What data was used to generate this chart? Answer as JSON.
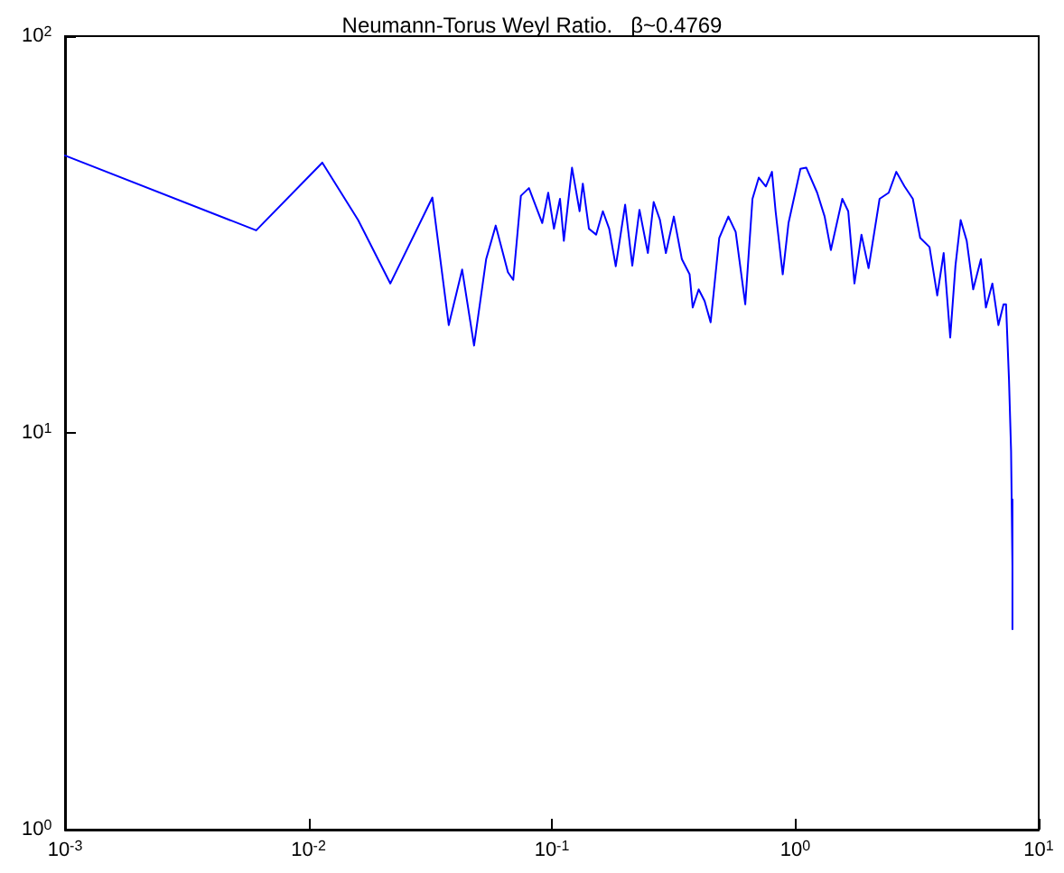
{
  "chart_data": {
    "type": "line",
    "title": "Neumann-Torus Weyl Ratio.   β~0.4769",
    "log": "xy",
    "grid": false,
    "marker": "none",
    "line_style": "solid",
    "xlim": [
      0.001,
      10
    ],
    "ylim": [
      1,
      100
    ],
    "xticks": [
      {
        "value": 0.001,
        "label": "10$^{-3}$"
      },
      {
        "value": 0.01,
        "label": "10$^{-2}$"
      },
      {
        "value": 0.1,
        "label": "10$^{-1}$"
      },
      {
        "value": 1,
        "label": "10$^{0}$"
      },
      {
        "value": 10,
        "label": "10$^{1}$"
      }
    ],
    "yticks": [
      {
        "value": 1,
        "label": "10$^{0}$"
      },
      {
        "value": 10,
        "label": "10$^{1}$"
      },
      {
        "value": 100,
        "label": "10$^{2}$"
      }
    ],
    "series": [
      {
        "color": "#0000ff",
        "x": [
          0.001,
          0.0061,
          0.0114,
          0.016,
          0.0217,
          0.0323,
          0.0377,
          0.0428,
          0.0479,
          0.0537,
          0.0588,
          0.066,
          0.0694,
          0.0746,
          0.0805,
          0.0913,
          0.0966,
          0.102,
          0.108,
          0.112,
          0.121,
          0.13,
          0.134,
          0.142,
          0.152,
          0.162,
          0.172,
          0.183,
          0.2,
          0.214,
          0.229,
          0.248,
          0.262,
          0.278,
          0.294,
          0.317,
          0.342,
          0.368,
          0.379,
          0.401,
          0.424,
          0.449,
          0.487,
          0.531,
          0.569,
          0.623,
          0.667,
          0.708,
          0.757,
          0.802,
          0.83,
          0.888,
          0.938,
          1.05,
          1.11,
          1.23,
          1.32,
          1.4,
          1.56,
          1.65,
          1.75,
          1.87,
          2.0,
          2.22,
          2.42,
          2.6,
          2.81,
          3.04,
          3.26,
          3.56,
          3.83,
          4.07,
          4.33,
          4.55,
          4.78,
          5.06,
          5.38,
          5.79,
          6.07,
          6.45,
          6.83,
          7.17,
          7.34,
          7.55,
          7.7,
          7.8,
          7.8,
          7.8
        ],
        "values": [
          50,
          32.4,
          48,
          34.4,
          23.8,
          39.2,
          18.7,
          25.8,
          16.6,
          27.4,
          33.3,
          25.4,
          24.3,
          39.6,
          41.4,
          33.8,
          40.3,
          32.7,
          38.9,
          30.5,
          46.6,
          36.2,
          42.5,
          32.7,
          31.6,
          36.2,
          32.7,
          26.3,
          37.6,
          26.4,
          36.5,
          28.4,
          38.2,
          34.4,
          28.4,
          35.1,
          27.4,
          25.1,
          20.7,
          23,
          21.5,
          19,
          31,
          35.1,
          32.1,
          21.1,
          38.9,
          44,
          41.8,
          45.5,
          36.2,
          25.1,
          33.8,
          46.3,
          46.6,
          40.3,
          35.1,
          28.9,
          38.9,
          36.2,
          23.8,
          31.6,
          26,
          38.9,
          40.3,
          45.5,
          41.8,
          38.9,
          31,
          29.4,
          22.2,
          28.4,
          17.4,
          26.4,
          34.4,
          30.5,
          23,
          27.4,
          20.7,
          23.8,
          18.7,
          21.1,
          21.1,
          13.6,
          9,
          4.6,
          3.2,
          6.8
        ]
      }
    ]
  }
}
